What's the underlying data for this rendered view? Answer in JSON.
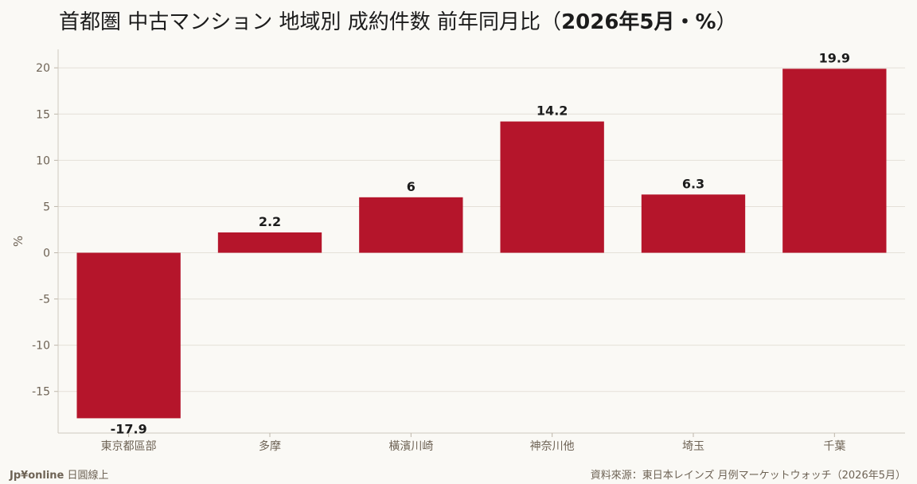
{
  "title": {
    "main": "首都圏 中古マンション 地域別 成約件数 前年同月比（",
    "period": "2026年5月・%",
    "close": "）"
  },
  "footer": {
    "brand": "Jp¥online",
    "brand_suffix": "日圓線上",
    "source": "資料來源：東日本レインズ 月例マーケットウォッチ（2026年5月）"
  },
  "colors": {
    "bar": "#b5152b",
    "grid": "#e4e0d8",
    "axis_text": "#6e6355",
    "label_text": "#1c1c1c"
  },
  "chart_data": {
    "type": "bar",
    "categories": [
      "東京都區部",
      "多摩",
      "橫濱川崎",
      "神奈川他",
      "埼玉",
      "千葉"
    ],
    "values": [
      -17.9,
      2.2,
      6,
      14.2,
      6.3,
      19.9
    ],
    "value_labels": [
      "-17.9",
      "2.2",
      "6",
      "14.2",
      "6.3",
      "19.9"
    ],
    "ylabel": "%",
    "xlabel": "",
    "ylim": [
      -19.5,
      22
    ],
    "yticks": [
      20,
      15,
      10,
      5,
      0,
      -5,
      -10,
      -15
    ],
    "grid": true,
    "legend": "none"
  }
}
